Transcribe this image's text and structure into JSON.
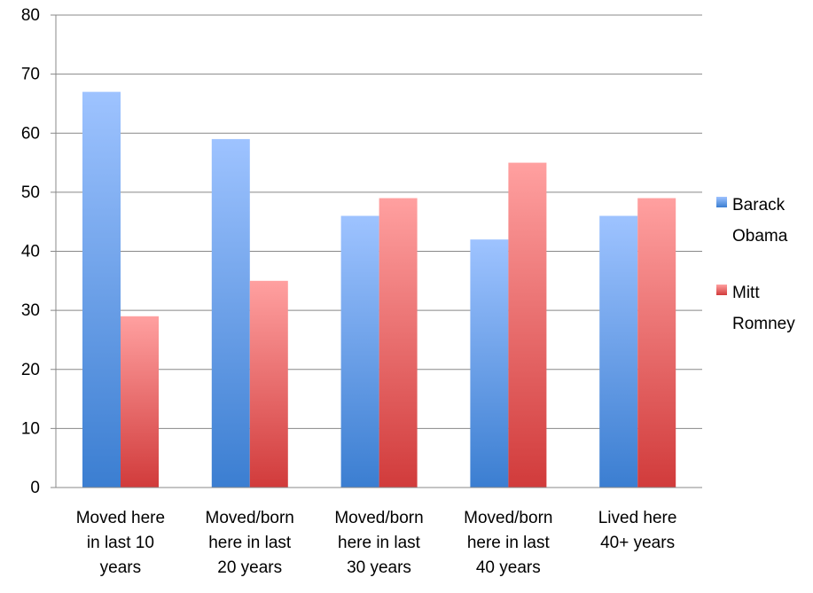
{
  "chart_data": {
    "type": "bar",
    "title": "",
    "xlabel": "",
    "ylabel": "",
    "ylim": [
      0,
      80
    ],
    "yticks": [
      0,
      10,
      20,
      30,
      40,
      50,
      60,
      70,
      80
    ],
    "grid": true,
    "legend_position": "right",
    "categories": [
      [
        "Moved here",
        "in last 10",
        "years"
      ],
      [
        "Moved/born",
        "here in last",
        "20 years"
      ],
      [
        "Moved/born",
        "here in last",
        "30 years"
      ],
      [
        "Moved/born",
        "here in last",
        "40 years"
      ],
      [
        "Lived here",
        "40+ years"
      ]
    ],
    "series": [
      {
        "name": "Barack Obama",
        "legend_lines": [
          "Barack",
          "Obama"
        ],
        "color_top": "#9ec3ff",
        "color_bottom": "#3b7ed1",
        "values": [
          67,
          59,
          46,
          42,
          46
        ]
      },
      {
        "name": "Mitt Romney",
        "legend_lines": [
          "Mitt",
          "Romney"
        ],
        "color_top": "#ffa0a0",
        "color_bottom": "#d13b3b",
        "values": [
          29,
          35,
          49,
          55,
          49
        ]
      }
    ]
  }
}
